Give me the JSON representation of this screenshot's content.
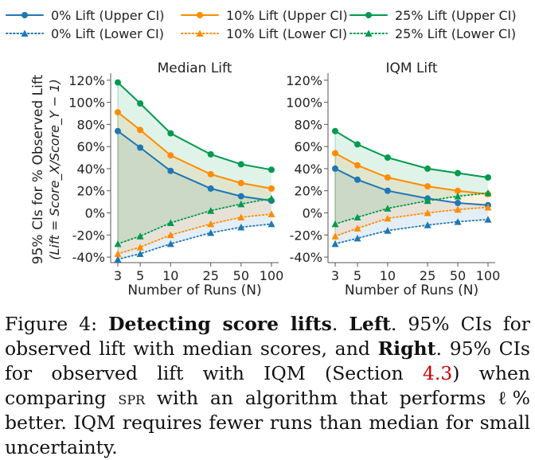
{
  "chart_data": [
    {
      "type": "line",
      "title": "Median Lift",
      "xlabel": "Number of Runs (N)",
      "ylabel_line1": "95% CIs for % Observed Lift",
      "ylabel_line2": "(Lift = Score_X/Score_Y − 1)",
      "x_scale": "log",
      "x": [
        3,
        5,
        10,
        25,
        50,
        100
      ],
      "ylim": [
        -45,
        122
      ],
      "yticks": [
        -40,
        -20,
        0,
        20,
        40,
        60,
        80,
        100,
        120
      ],
      "ytick_suffix": "%",
      "fill_between_upper_lower": true,
      "series": [
        {
          "name": "0% Lift (Upper CI)",
          "color": "#1f77b4",
          "style": "solid",
          "marker": "circle",
          "values": [
            74,
            59,
            38,
            22,
            15,
            11
          ]
        },
        {
          "name": "0% Lift (Lower CI)",
          "color": "#1f77b4",
          "style": "dotted",
          "marker": "triangle",
          "values": [
            -42,
            -37,
            -28,
            -18,
            -13,
            -10
          ]
        },
        {
          "name": "10% Lift (Upper CI)",
          "color": "#ff8c00",
          "style": "solid",
          "marker": "circle",
          "values": [
            91,
            75,
            52,
            35,
            27,
            22
          ]
        },
        {
          "name": "10% Lift (Lower CI)",
          "color": "#ff8c00",
          "style": "dotted",
          "marker": "triangle",
          "values": [
            -37,
            -31,
            -20,
            -10,
            -4,
            -1
          ]
        },
        {
          "name": "25% Lift (Upper CI)",
          "color": "#009a4e",
          "style": "solid",
          "marker": "circle",
          "values": [
            118,
            99,
            72,
            53,
            44,
            39
          ]
        },
        {
          "name": "25% Lift (Lower CI)",
          "color": "#009a4e",
          "style": "dotted",
          "marker": "triangle",
          "values": [
            -28,
            -21,
            -9,
            2,
            8,
            13
          ]
        }
      ]
    },
    {
      "type": "line",
      "title": "IQM Lift",
      "xlabel": "Number of Runs (N)",
      "x_scale": "log",
      "x": [
        3,
        5,
        10,
        25,
        50,
        100
      ],
      "ylim": [
        -45,
        122
      ],
      "yticks": [
        -40,
        -20,
        0,
        20,
        40,
        60,
        80,
        100,
        120
      ],
      "ytick_suffix": "%",
      "fill_between_upper_lower": true,
      "series": [
        {
          "name": "0% Lift (Upper CI)",
          "color": "#1f77b4",
          "style": "solid",
          "marker": "circle",
          "values": [
            40,
            30,
            20,
            13,
            9,
            7
          ]
        },
        {
          "name": "0% Lift (Lower CI)",
          "color": "#1f77b4",
          "style": "dotted",
          "marker": "triangle",
          "values": [
            -28,
            -23,
            -16,
            -11,
            -8,
            -6
          ]
        },
        {
          "name": "10% Lift (Upper CI)",
          "color": "#ff8c00",
          "style": "solid",
          "marker": "circle",
          "values": [
            54,
            43,
            32,
            24,
            20,
            17
          ]
        },
        {
          "name": "10% Lift (Lower CI)",
          "color": "#ff8c00",
          "style": "dotted",
          "marker": "triangle",
          "values": [
            -21,
            -14,
            -5,
            0,
            3,
            5
          ]
        },
        {
          "name": "25% Lift (Upper CI)",
          "color": "#009a4e",
          "style": "solid",
          "marker": "circle",
          "values": [
            74,
            62,
            50,
            40,
            36,
            32
          ]
        },
        {
          "name": "25% Lift (Lower CI)",
          "color": "#009a4e",
          "style": "dotted",
          "marker": "triangle",
          "values": [
            -10,
            -4,
            4,
            11,
            15,
            18
          ]
        }
      ]
    }
  ],
  "legend": {
    "placement": "top",
    "columns": 3,
    "entries": [
      "0% Lift (Upper CI)",
      "10% Lift (Upper CI)",
      "25% Lift (Upper CI)",
      "0% Lift (Lower CI)",
      "10% Lift (Lower CI)",
      "25% Lift (Lower CI)"
    ],
    "colors": [
      "#1f77b4",
      "#ff8c00",
      "#009a4e",
      "#1f77b4",
      "#ff8c00",
      "#009a4e"
    ],
    "styles": [
      "solid",
      "solid",
      "solid",
      "dotted",
      "dotted",
      "dotted"
    ]
  },
  "caption": {
    "label": "Figure 4: ",
    "bold1": "Detecting score lifts",
    "t1": ". ",
    "bold2": "Left",
    "t2": ". 95% CIs for observed lift with median scores, and ",
    "bold3": "Right",
    "t3": ". 95% CIs for observed lift with IQM (Section ",
    "ref": "4.3",
    "t4": ") when comparing ",
    "sc": "spr",
    "t5": " with an algorithm that performs ℓ% better. IQM requires fewer runs than median for small uncertainty."
  }
}
